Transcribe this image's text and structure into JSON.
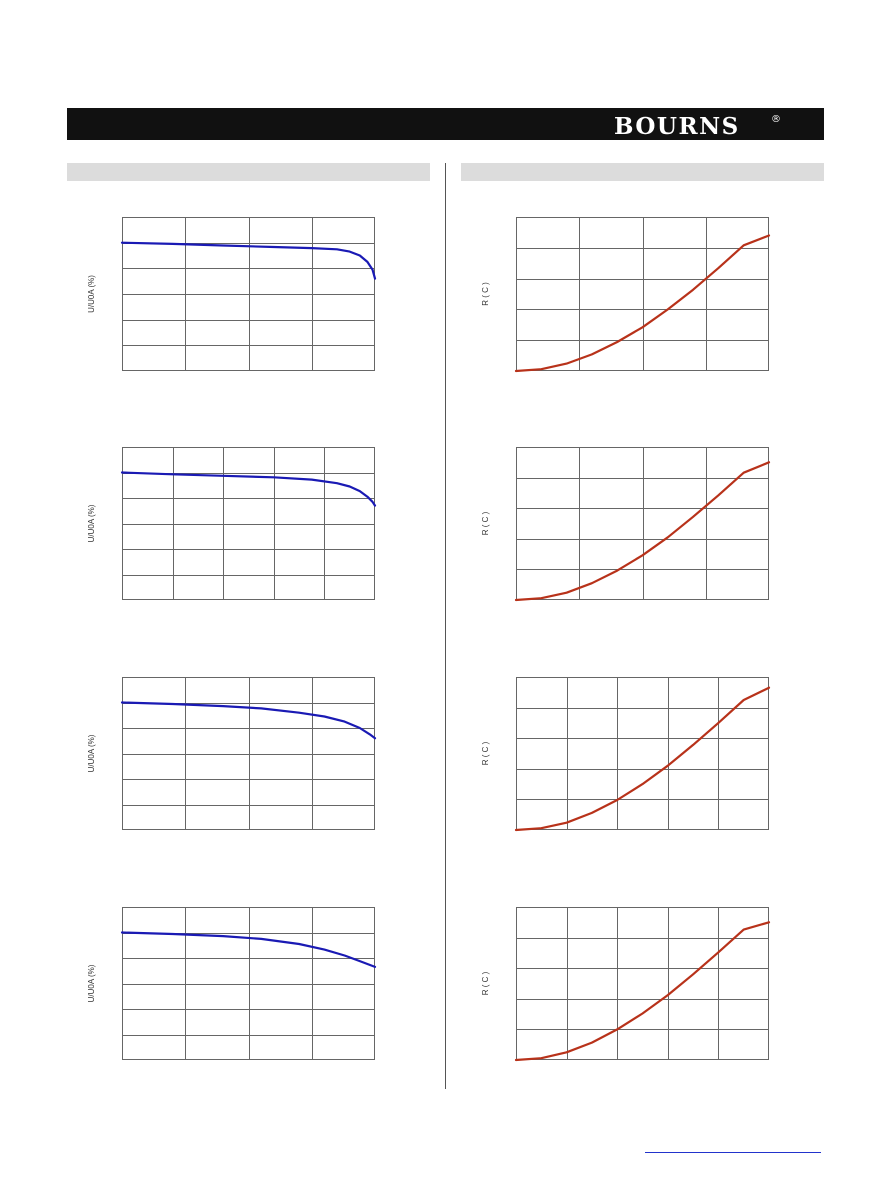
{
  "header": {
    "logo_text": "BOURNS",
    "logo_mark": "®",
    "colors": {
      "bar": "#111111",
      "logo": "#ffffff"
    }
  },
  "sections": {
    "left": {
      "title": ""
    },
    "right": {
      "title": ""
    }
  },
  "colors": {
    "derating_line": "#1a1ab4",
    "resistance_line": "#b8321a",
    "grid": "#666666",
    "section_bar": "#dcdcdc"
  },
  "chart_data": [
    {
      "type": "line",
      "ylabel": "U/U0A (%)",
      "x_divisions": 4,
      "y_divisions": 6,
      "xlim": [
        0,
        1
      ],
      "ylim": [
        0,
        6
      ],
      "series": [
        {
          "color": "#1a1ab4",
          "x": [
            0,
            0.2,
            0.4,
            0.6,
            0.75,
            0.85,
            0.9,
            0.94,
            0.97,
            0.99,
            1.0
          ],
          "y": [
            5.0,
            4.95,
            4.89,
            4.83,
            4.79,
            4.74,
            4.65,
            4.5,
            4.25,
            3.95,
            3.6
          ]
        }
      ]
    },
    {
      "type": "line",
      "ylabel": "U/U0A (%)",
      "x_divisions": 5,
      "y_divisions": 6,
      "xlim": [
        0,
        1
      ],
      "ylim": [
        0,
        6
      ],
      "series": [
        {
          "color": "#1a1ab4",
          "x": [
            0,
            0.2,
            0.4,
            0.6,
            0.75,
            0.85,
            0.9,
            0.94,
            0.97,
            0.99,
            1.0
          ],
          "y": [
            5.0,
            4.93,
            4.87,
            4.81,
            4.72,
            4.58,
            4.45,
            4.27,
            4.05,
            3.85,
            3.7
          ]
        }
      ]
    },
    {
      "type": "line",
      "ylabel": "U/U0A (%)",
      "x_divisions": 4,
      "y_divisions": 6,
      "xlim": [
        0,
        1
      ],
      "ylim": [
        0,
        6
      ],
      "series": [
        {
          "color": "#1a1ab4",
          "x": [
            0,
            0.2,
            0.4,
            0.55,
            0.7,
            0.8,
            0.88,
            0.94,
            0.98,
            1.0
          ],
          "y": [
            5.0,
            4.94,
            4.86,
            4.77,
            4.6,
            4.45,
            4.25,
            4.0,
            3.75,
            3.6
          ]
        }
      ]
    },
    {
      "type": "line",
      "ylabel": "U/U0A (%)",
      "x_divisions": 4,
      "y_divisions": 6,
      "xlim": [
        0,
        1
      ],
      "ylim": [
        0,
        6
      ],
      "series": [
        {
          "color": "#1a1ab4",
          "x": [
            0,
            0.2,
            0.4,
            0.55,
            0.7,
            0.8,
            0.88,
            0.94,
            1.0
          ],
          "y": [
            5.0,
            4.94,
            4.86,
            4.75,
            4.55,
            4.33,
            4.1,
            3.88,
            3.65
          ]
        }
      ]
    },
    {
      "type": "line",
      "ylabel": "R    ( C )",
      "x_divisions": 4,
      "y_divisions": 5,
      "xlim": [
        0,
        1
      ],
      "ylim": [
        0,
        5
      ],
      "series": [
        {
          "color": "#b8321a",
          "x": [
            0,
            0.1,
            0.2,
            0.3,
            0.4,
            0.5,
            0.6,
            0.7,
            0.8,
            0.9,
            1.0
          ],
          "y": [
            0,
            0.06,
            0.24,
            0.54,
            0.94,
            1.42,
            2.0,
            2.64,
            3.34,
            4.08,
            4.4
          ]
        }
      ]
    },
    {
      "type": "line",
      "ylabel": "R    ( C )",
      "x_divisions": 4,
      "y_divisions": 5,
      "xlim": [
        0,
        1
      ],
      "ylim": [
        0,
        5
      ],
      "series": [
        {
          "color": "#b8321a",
          "x": [
            0,
            0.1,
            0.2,
            0.3,
            0.4,
            0.5,
            0.6,
            0.7,
            0.8,
            0.9,
            1.0
          ],
          "y": [
            0,
            0.06,
            0.24,
            0.55,
            0.96,
            1.46,
            2.05,
            2.72,
            3.42,
            4.16,
            4.5
          ]
        }
      ]
    },
    {
      "type": "line",
      "ylabel": "R    ( C )",
      "x_divisions": 5,
      "y_divisions": 5,
      "xlim": [
        0,
        1
      ],
      "ylim": [
        0,
        5
      ],
      "series": [
        {
          "color": "#b8321a",
          "x": [
            0,
            0.1,
            0.2,
            0.3,
            0.4,
            0.5,
            0.6,
            0.7,
            0.8,
            0.9,
            1.0
          ],
          "y": [
            0,
            0.06,
            0.24,
            0.56,
            0.98,
            1.5,
            2.1,
            2.78,
            3.5,
            4.25,
            4.65
          ]
        }
      ]
    },
    {
      "type": "line",
      "ylabel": "R    ( C )",
      "x_divisions": 5,
      "y_divisions": 5,
      "xlim": [
        0,
        1
      ],
      "ylim": [
        0,
        5
      ],
      "series": [
        {
          "color": "#b8321a",
          "x": [
            0,
            0.1,
            0.2,
            0.3,
            0.4,
            0.5,
            0.6,
            0.7,
            0.8,
            0.9,
            1.0
          ],
          "y": [
            0,
            0.06,
            0.25,
            0.57,
            1.0,
            1.52,
            2.12,
            2.8,
            3.52,
            4.26,
            4.5
          ]
        }
      ]
    }
  ]
}
